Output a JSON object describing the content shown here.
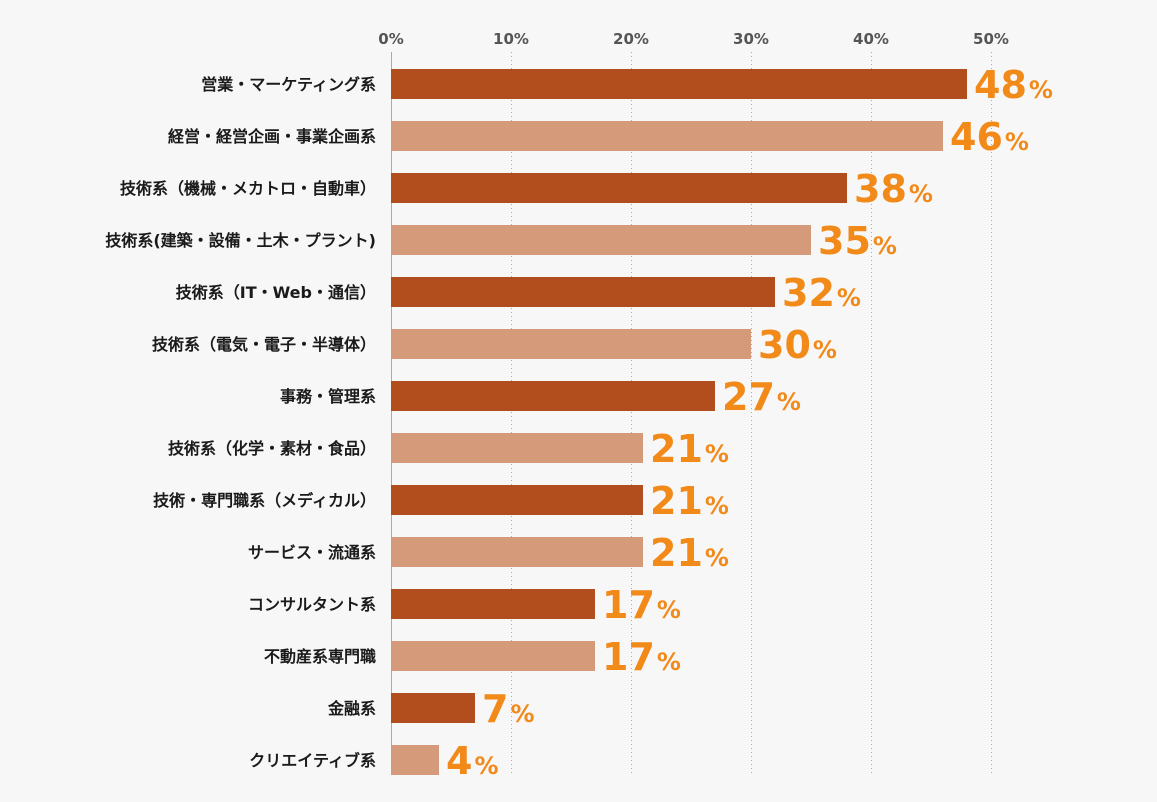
{
  "chart_data": {
    "type": "bar",
    "orientation": "horizontal",
    "title": "",
    "xlabel": "",
    "ylabel": "",
    "xlim": [
      0,
      50
    ],
    "ticks": [
      "0%",
      "10%",
      "20%",
      "30%",
      "40%",
      "50%"
    ],
    "tick_values": [
      0,
      10,
      20,
      30,
      40,
      50
    ],
    "grid": true,
    "value_suffix": "%",
    "categories": [
      "営業・マーケティング系",
      "経営・経営企画・事業企画系",
      "技術系（機械・メカトロ・自動車）",
      "技術系(建築・設備・土木・プラント)",
      "技術系（IT・Web・通信）",
      "技術系（電気・電子・半導体）",
      "事務・管理系",
      "技術系（化学・素材・食品）",
      "技術・専門職系（メディカル）",
      "サービス・流通系",
      "コンサルタント系",
      "不動産系専門職",
      "金融系",
      "クリエイティブ系"
    ],
    "values": [
      48,
      46,
      38,
      35,
      32,
      30,
      27,
      21,
      21,
      21,
      17,
      17,
      7,
      4
    ],
    "colors": {
      "bar_dark": "#b24d1e",
      "bar_light": "#d49a7a",
      "value_label": "#f28a1a",
      "grid": "#aaaaaa"
    }
  }
}
